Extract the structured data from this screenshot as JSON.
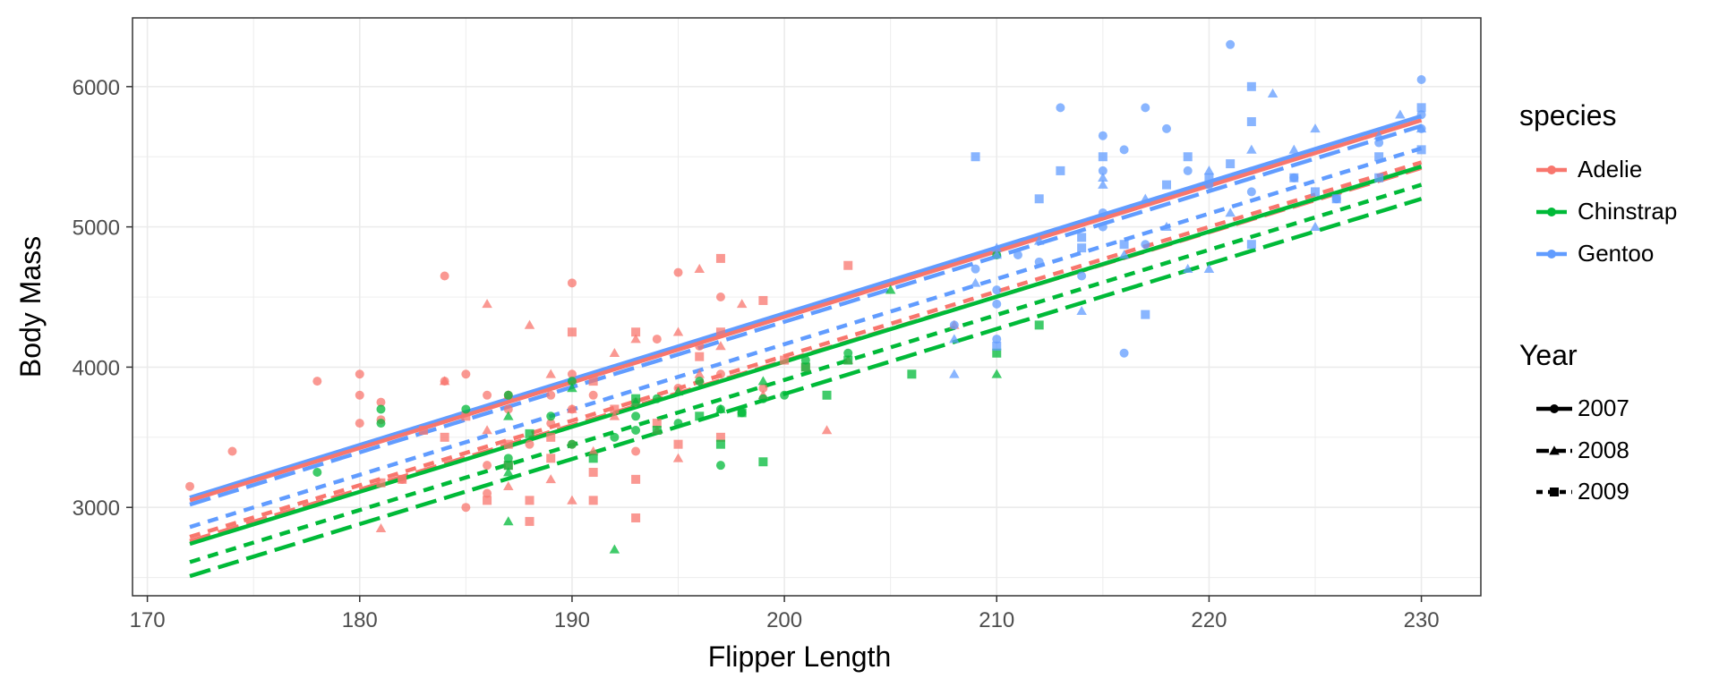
{
  "chart_data": {
    "type": "scatter",
    "xlabel": "Flipper Length",
    "ylabel": "Body Mass",
    "xlim": [
      169.3,
      232.8
    ],
    "ylim": [
      2370,
      6490
    ],
    "x_ticks": [
      170,
      180,
      190,
      200,
      210,
      220,
      230
    ],
    "y_ticks": [
      3000,
      4000,
      5000,
      6000
    ],
    "grid": true,
    "legend_placement": "right",
    "colors": {
      "Adelie": "#F8766D",
      "Chinstrap": "#00BA38",
      "Gentoo": "#619CFF"
    },
    "legend": {
      "species_title": "species",
      "species": [
        "Adelie",
        "Chinstrap",
        "Gentoo"
      ],
      "year_title": "Year",
      "years": [
        "2007",
        "2008",
        "2009"
      ]
    },
    "shapes": {
      "2007": "circle",
      "2008": "triangle",
      "2009": "square"
    },
    "linetypes": {
      "2007": "solid",
      "2008": "longdash",
      "2009": "dashed"
    },
    "series": [
      {
        "species": "Adelie",
        "year": "2007",
        "points": [
          [
            172,
            3150
          ],
          [
            174,
            3400
          ],
          [
            178,
            3900
          ],
          [
            180,
            3950
          ],
          [
            180,
            3800
          ],
          [
            180,
            3600
          ],
          [
            181,
            3750
          ],
          [
            181,
            3625
          ],
          [
            182,
            3200
          ],
          [
            184,
            4650
          ],
          [
            184,
            3900
          ],
          [
            185,
            3950
          ],
          [
            185,
            3000
          ],
          [
            186,
            3800
          ],
          [
            186,
            3300
          ],
          [
            186,
            3100
          ],
          [
            187,
            3800
          ],
          [
            187,
            3700
          ],
          [
            188,
            3450
          ],
          [
            189,
            3800
          ],
          [
            189,
            3600
          ],
          [
            190,
            4600
          ],
          [
            190,
            3950
          ],
          [
            190,
            3700
          ],
          [
            190,
            3450
          ],
          [
            191,
            3800
          ],
          [
            193,
            3750
          ],
          [
            193,
            3400
          ],
          [
            194,
            4200
          ],
          [
            195,
            4675
          ],
          [
            195,
            3850
          ],
          [
            196,
            4150
          ],
          [
            197,
            4500
          ],
          [
            197,
            3950
          ],
          [
            199,
            3850
          ]
        ]
      },
      {
        "species": "Adelie",
        "year": "2008",
        "points": [
          [
            181,
            2850
          ],
          [
            184,
            3900
          ],
          [
            186,
            4450
          ],
          [
            186,
            3550
          ],
          [
            187,
            3800
          ],
          [
            187,
            3150
          ],
          [
            188,
            4300
          ],
          [
            189,
            3950
          ],
          [
            189,
            3200
          ],
          [
            190,
            3050
          ],
          [
            190,
            3700
          ],
          [
            191,
            3400
          ],
          [
            192,
            4100
          ],
          [
            192,
            3650
          ],
          [
            193,
            4200
          ],
          [
            194,
            3550
          ],
          [
            195,
            4250
          ],
          [
            195,
            3350
          ],
          [
            196,
            4700
          ],
          [
            196,
            3950
          ],
          [
            197,
            4150
          ],
          [
            198,
            4450
          ],
          [
            199,
            3800
          ],
          [
            202,
            3550
          ],
          [
            203,
            4050
          ],
          [
            208,
            4300
          ]
        ]
      },
      {
        "species": "Adelie",
        "year": "2009",
        "points": [
          [
            181,
            3175
          ],
          [
            182,
            3200
          ],
          [
            183,
            3550
          ],
          [
            184,
            3500
          ],
          [
            185,
            3650
          ],
          [
            186,
            3050
          ],
          [
            187,
            3300
          ],
          [
            187,
            3450
          ],
          [
            188,
            2900
          ],
          [
            188,
            3050
          ],
          [
            189,
            3500
          ],
          [
            189,
            3350
          ],
          [
            190,
            4250
          ],
          [
            191,
            3900
          ],
          [
            191,
            3050
          ],
          [
            191,
            3250
          ],
          [
            192,
            3700
          ],
          [
            193,
            4250
          ],
          [
            193,
            3200
          ],
          [
            193,
            2925
          ],
          [
            194,
            3600
          ],
          [
            195,
            3450
          ],
          [
            196,
            4075
          ],
          [
            197,
            4775
          ],
          [
            197,
            4250
          ],
          [
            197,
            3500
          ],
          [
            199,
            4475
          ],
          [
            200,
            4050
          ],
          [
            201,
            4000
          ],
          [
            203,
            4725
          ]
        ]
      },
      {
        "species": "Chinstrap",
        "year": "2007",
        "points": [
          [
            178,
            3250
          ],
          [
            181,
            3700
          ],
          [
            181,
            3600
          ],
          [
            185,
            3700
          ],
          [
            187,
            3350
          ],
          [
            187,
            3800
          ],
          [
            189,
            3650
          ],
          [
            190,
            3900
          ],
          [
            190,
            3450
          ],
          [
            192,
            3500
          ],
          [
            193,
            3650
          ],
          [
            193,
            3550
          ],
          [
            194,
            3775
          ],
          [
            195,
            3600
          ],
          [
            196,
            3900
          ],
          [
            197,
            3300
          ],
          [
            197,
            3700
          ],
          [
            198,
            3675
          ],
          [
            199,
            3775
          ],
          [
            200,
            3800
          ],
          [
            201,
            4050
          ],
          [
            203,
            4100
          ],
          [
            210,
            4800
          ]
        ]
      },
      {
        "species": "Chinstrap",
        "year": "2008",
        "points": [
          [
            187,
            2900
          ],
          [
            187,
            3250
          ],
          [
            187,
            3650
          ],
          [
            190,
            3850
          ],
          [
            192,
            2700
          ],
          [
            193,
            3750
          ],
          [
            195,
            3825
          ],
          [
            197,
            3700
          ],
          [
            199,
            3900
          ],
          [
            205,
            4550
          ],
          [
            210,
            3950
          ]
        ]
      },
      {
        "species": "Chinstrap",
        "year": "2009",
        "points": [
          [
            187,
            3300
          ],
          [
            188,
            3525
          ],
          [
            191,
            3350
          ],
          [
            193,
            3775
          ],
          [
            194,
            3550
          ],
          [
            196,
            3650
          ],
          [
            197,
            3450
          ],
          [
            198,
            3675
          ],
          [
            199,
            3325
          ],
          [
            201,
            4000
          ],
          [
            202,
            3800
          ],
          [
            203,
            4050
          ],
          [
            206,
            3950
          ],
          [
            210,
            4100
          ],
          [
            212,
            4300
          ]
        ]
      },
      {
        "species": "Gentoo",
        "year": "2007",
        "points": [
          [
            208,
            4300
          ],
          [
            209,
            4700
          ],
          [
            210,
            4450
          ],
          [
            210,
            4200
          ],
          [
            210,
            4550
          ],
          [
            211,
            4800
          ],
          [
            212,
            4750
          ],
          [
            213,
            5850
          ],
          [
            214,
            4650
          ],
          [
            215,
            5650
          ],
          [
            215,
            5400
          ],
          [
            215,
            5100
          ],
          [
            215,
            5000
          ],
          [
            216,
            4100
          ],
          [
            216,
            5550
          ],
          [
            217,
            5850
          ],
          [
            217,
            4875
          ],
          [
            218,
            5700
          ],
          [
            219,
            5400
          ],
          [
            220,
            5300
          ],
          [
            221,
            6300
          ],
          [
            222,
            5250
          ],
          [
            224,
            5350
          ],
          [
            226,
            5200
          ],
          [
            228,
            5600
          ],
          [
            230,
            6050
          ],
          [
            230,
            5700
          ],
          [
            230,
            5800
          ]
        ]
      },
      {
        "species": "Gentoo",
        "year": "2008",
        "points": [
          [
            208,
            3950
          ],
          [
            208,
            4200
          ],
          [
            209,
            4600
          ],
          [
            210,
            4850
          ],
          [
            210,
            4800
          ],
          [
            212,
            4900
          ],
          [
            214,
            4400
          ],
          [
            215,
            5300
          ],
          [
            215,
            5350
          ],
          [
            216,
            4800
          ],
          [
            217,
            5200
          ],
          [
            218,
            5000
          ],
          [
            219,
            4700
          ],
          [
            220,
            5400
          ],
          [
            220,
            4700
          ],
          [
            221,
            5100
          ],
          [
            222,
            5550
          ],
          [
            223,
            5950
          ],
          [
            224,
            5550
          ],
          [
            225,
            5700
          ],
          [
            225,
            5000
          ],
          [
            228,
            5650
          ],
          [
            229,
            5800
          ],
          [
            230,
            5700
          ]
        ]
      },
      {
        "species": "Gentoo",
        "year": "2009",
        "points": [
          [
            209,
            5500
          ],
          [
            210,
            4150
          ],
          [
            212,
            5200
          ],
          [
            213,
            5400
          ],
          [
            214,
            4850
          ],
          [
            214,
            4925
          ],
          [
            215,
            5500
          ],
          [
            216,
            4875
          ],
          [
            217,
            4375
          ],
          [
            218,
            5300
          ],
          [
            219,
            5500
          ],
          [
            220,
            5350
          ],
          [
            221,
            5450
          ],
          [
            222,
            6000
          ],
          [
            222,
            5750
          ],
          [
            222,
            4875
          ],
          [
            224,
            5350
          ],
          [
            225,
            5250
          ],
          [
            226,
            5200
          ],
          [
            228,
            5500
          ],
          [
            228,
            5350
          ],
          [
            230,
            5850
          ],
          [
            230,
            5550
          ]
        ]
      }
    ],
    "fit_lines": [
      {
        "species": "Gentoo",
        "year": "2007",
        "x": [
          172,
          230
        ],
        "y": [
          3070,
          5790
        ]
      },
      {
        "species": "Adelie",
        "year": "2007",
        "x": [
          172,
          230
        ],
        "y": [
          3050,
          5760
        ]
      },
      {
        "species": "Gentoo",
        "year": "2008",
        "x": [
          172,
          230
        ],
        "y": [
          3020,
          5720
        ]
      },
      {
        "species": "Adelie",
        "year": "2008",
        "x": [
          172,
          230
        ],
        "y": [
          2760,
          5420
        ]
      },
      {
        "species": "Gentoo",
        "year": "2009",
        "x": [
          172,
          230
        ],
        "y": [
          2860,
          5560
        ]
      },
      {
        "species": "Adelie",
        "year": "2009",
        "x": [
          172,
          230
        ],
        "y": [
          2790,
          5460
        ]
      },
      {
        "species": "Chinstrap",
        "year": "2007",
        "x": [
          172,
          230
        ],
        "y": [
          2740,
          5430
        ]
      },
      {
        "species": "Chinstrap",
        "year": "2009",
        "x": [
          172,
          230
        ],
        "y": [
          2610,
          5300
        ]
      },
      {
        "species": "Chinstrap",
        "year": "2008",
        "x": [
          172,
          230
        ],
        "y": [
          2510,
          5200
        ]
      }
    ]
  }
}
